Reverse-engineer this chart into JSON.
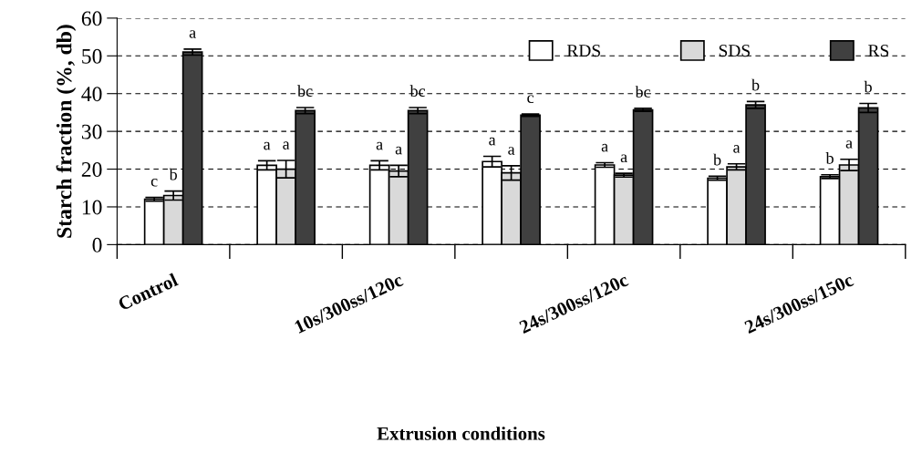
{
  "chart_data": {
    "type": "bar",
    "xlabel": "Extrusion conditions",
    "ylabel": "Starch fraction (%, db)",
    "categories": [
      "Control",
      null,
      "10s/300ss/120c",
      null,
      "24s/300ss/120c",
      null,
      "24s/300ss/150c"
    ],
    "series": [
      {
        "name": "RDS",
        "color": "#ffffff",
        "values": [
          12,
          21,
          21,
          22,
          21.1,
          17.6,
          18
        ],
        "errors": [
          0.5,
          1.2,
          1.2,
          1.4,
          0.6,
          0.5,
          0.5
        ],
        "value_labels": [
          "c",
          "a",
          "a",
          "a",
          "a",
          "b",
          "b"
        ]
      },
      {
        "name": "SDS",
        "color": "#d9d9d9",
        "values": [
          13,
          20,
          19.5,
          19,
          18.4,
          20.6,
          21.1
        ],
        "errors": [
          1.2,
          2.3,
          1.5,
          1.9,
          0.5,
          0.8,
          1.5
        ],
        "value_labels": [
          "b",
          "a",
          "a",
          "a",
          "a",
          "a",
          "a"
        ]
      },
      {
        "name": "RS",
        "color": "#404040",
        "values": [
          51,
          35.5,
          35.5,
          34.3,
          35.7,
          37,
          36.2
        ],
        "errors": [
          0.8,
          0.8,
          0.8,
          0.3,
          0.4,
          0.9,
          1.2
        ],
        "value_labels": [
          "a",
          "bc",
          "bc",
          "c",
          "bc",
          "b",
          "b"
        ]
      }
    ],
    "ylim": [
      0,
      60
    ],
    "yticks": [
      0,
      10,
      20,
      30,
      40,
      50,
      60
    ],
    "grid": "y",
    "legend": "top right"
  }
}
